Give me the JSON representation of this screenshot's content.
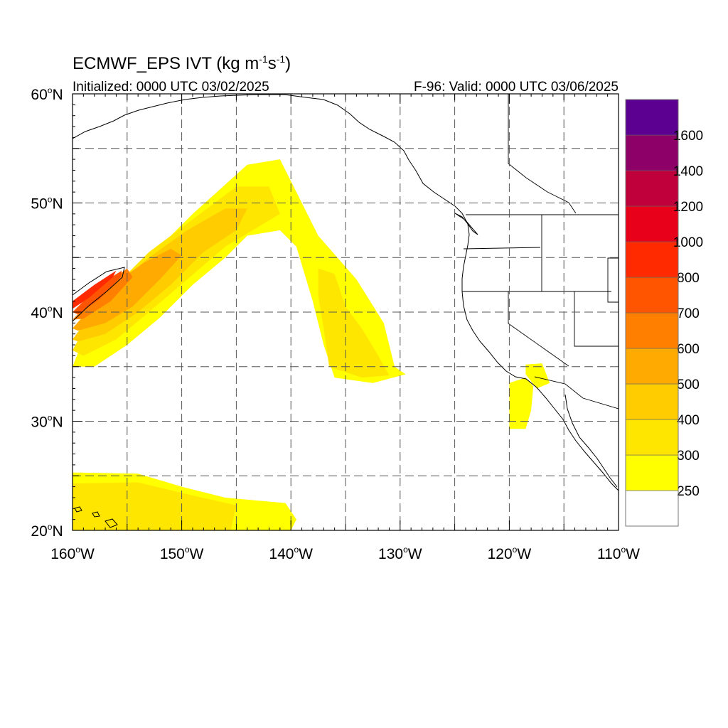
{
  "title": {
    "main": "ECMWF_EPS IVT (kg m",
    "sup1": "-1",
    "mid": "s",
    "sup2": "-1",
    "end": ")"
  },
  "subtitle_left": "Initialized: 0000 UTC 03/02/2025",
  "subtitle_right": "F-96: Valid: 0000 UTC 03/06/2025",
  "map": {
    "lon_range": [
      -160,
      -110
    ],
    "lat_range": [
      20,
      60
    ],
    "grid_lons": [
      -155,
      -150,
      -145,
      -140,
      -135,
      -130,
      -125,
      -120,
      -115
    ],
    "grid_lats": [
      25,
      30,
      35,
      40,
      45,
      50,
      55
    ],
    "lon_ticks": [
      {
        "value": -160,
        "label": "160",
        "suffix": "W"
      },
      {
        "value": -150,
        "label": "150",
        "suffix": "W"
      },
      {
        "value": -140,
        "label": "140",
        "suffix": "W"
      },
      {
        "value": -130,
        "label": "130",
        "suffix": "W"
      },
      {
        "value": -120,
        "label": "120",
        "suffix": "W"
      },
      {
        "value": -110,
        "label": "110",
        "suffix": "W"
      }
    ],
    "lat_ticks": [
      {
        "value": 60,
        "label": "60",
        "suffix": "N"
      },
      {
        "value": 50,
        "label": "50",
        "suffix": "N"
      },
      {
        "value": 40,
        "label": "40",
        "suffix": "N"
      },
      {
        "value": 30,
        "label": "30",
        "suffix": "N"
      },
      {
        "value": 20,
        "label": "20",
        "suffix": "N"
      }
    ],
    "degree_symbol": "o"
  },
  "colorbar": {
    "levels": [
      {
        "label": "250",
        "color": "#ffff00"
      },
      {
        "label": "300",
        "color": "#ffe600"
      },
      {
        "label": "400",
        "color": "#ffcc00"
      },
      {
        "label": "500",
        "color": "#ffaa00"
      },
      {
        "label": "600",
        "color": "#ff8000"
      },
      {
        "label": "700",
        "color": "#ff5500"
      },
      {
        "label": "800",
        "color": "#ff2a00"
      },
      {
        "label": "1000",
        "color": "#e8001a"
      },
      {
        "label": "1200",
        "color": "#c0003a"
      },
      {
        "label": "1400",
        "color": "#8c0068"
      },
      {
        "label": "1600",
        "color": "#5b0090"
      }
    ]
  },
  "ivt_regions": [
    {
      "name": "ar-main-250",
      "level": 0,
      "lonlat": [
        [
          -160,
          35
        ],
        [
          -158,
          40
        ],
        [
          -153,
          45
        ],
        [
          -149,
          49
        ],
        [
          -144,
          53.5
        ],
        [
          -141,
          54
        ],
        [
          -139.5,
          51
        ],
        [
          -137.5,
          47
        ],
        [
          -134,
          43
        ],
        [
          -131.5,
          39
        ],
        [
          -130.5,
          35
        ],
        [
          -129.5,
          34.3
        ],
        [
          -132.5,
          33.5
        ],
        [
          -136,
          34
        ],
        [
          -137,
          37
        ],
        [
          -138,
          41
        ],
        [
          -139.5,
          46
        ],
        [
          -141,
          47.5
        ],
        [
          -144,
          47
        ],
        [
          -146,
          45
        ],
        [
          -149,
          42.5
        ],
        [
          -152,
          39.5
        ],
        [
          -155,
          37
        ],
        [
          -158,
          35
        ]
      ]
    },
    {
      "name": "ar-main-300",
      "level": 1,
      "lonlat": [
        [
          -160,
          36.5
        ],
        [
          -157.5,
          41
        ],
        [
          -153,
          45.5
        ],
        [
          -149,
          48.5
        ],
        [
          -145,
          51.5
        ],
        [
          -142,
          51.5
        ],
        [
          -141,
          49
        ],
        [
          -143.5,
          47.5
        ],
        [
          -146,
          46
        ],
        [
          -149.5,
          43
        ],
        [
          -153,
          40
        ],
        [
          -156,
          37.5
        ],
        [
          -159,
          36
        ]
      ]
    },
    {
      "name": "ar-tail-300",
      "level": 1,
      "lonlat": [
        [
          -137.5,
          44
        ],
        [
          -136,
          43.5
        ],
        [
          -135,
          40.5
        ],
        [
          -133.5,
          38.5
        ],
        [
          -132,
          36
        ],
        [
          -131,
          34.2
        ],
        [
          -133.5,
          34
        ],
        [
          -136.5,
          35
        ],
        [
          -137,
          38.5
        ],
        [
          -137.5,
          41.5
        ]
      ]
    },
    {
      "name": "ar-main-400",
      "level": 2,
      "lonlat": [
        [
          -160,
          37.5
        ],
        [
          -157,
          41.5
        ],
        [
          -153,
          45
        ],
        [
          -149.5,
          47.5
        ],
        [
          -146,
          49.5
        ],
        [
          -144,
          49.5
        ],
        [
          -145,
          47.5
        ],
        [
          -148,
          45.5
        ],
        [
          -151,
          42.5
        ],
        [
          -154,
          40
        ],
        [
          -157,
          38
        ],
        [
          -159.5,
          37.3
        ]
      ]
    },
    {
      "name": "ar-main-500",
      "level": 3,
      "lonlat": [
        [
          -160,
          38.5
        ],
        [
          -157,
          42
        ],
        [
          -153.5,
          44.5
        ],
        [
          -151,
          45.8
        ],
        [
          -150,
          45.2
        ],
        [
          -152,
          43
        ],
        [
          -154.5,
          40.5
        ],
        [
          -157,
          39
        ],
        [
          -159.5,
          38.3
        ]
      ]
    },
    {
      "name": "ar-main-600",
      "level": 4,
      "lonlat": [
        [
          -160,
          39.3
        ],
        [
          -157,
          42.5
        ],
        [
          -155,
          44
        ],
        [
          -154.5,
          43.2
        ],
        [
          -156.5,
          41
        ],
        [
          -159,
          39.4
        ]
      ]
    },
    {
      "name": "ar-main-700",
      "level": 5,
      "lonlat": [
        [
          -160,
          40
        ],
        [
          -157.5,
          42.5
        ],
        [
          -155.5,
          43.8
        ],
        [
          -155.6,
          43.2
        ],
        [
          -157.5,
          41.2
        ],
        [
          -159.5,
          39.8
        ]
      ]
    },
    {
      "name": "ar-main-800",
      "level": 6,
      "lonlat": [
        [
          -160,
          41
        ],
        [
          -158,
          42.5
        ],
        [
          -156,
          43.8
        ],
        [
          -156.3,
          43.2
        ],
        [
          -158.5,
          41.3
        ],
        [
          -160,
          40.3
        ]
      ]
    },
    {
      "name": "hawaii-band-250",
      "level": 0,
      "lonlat": [
        [
          -160,
          25.3
        ],
        [
          -154,
          25.2
        ],
        [
          -150,
          24
        ],
        [
          -146,
          23
        ],
        [
          -140.5,
          22.5
        ],
        [
          -139.5,
          21
        ],
        [
          -140,
          20
        ],
        [
          -160,
          20
        ]
      ]
    },
    {
      "name": "hawaii-band-300",
      "level": 1,
      "lonlat": [
        [
          -160,
          24.3
        ],
        [
          -154,
          24.4
        ],
        [
          -149,
          23.2
        ],
        [
          -145,
          22.3
        ],
        [
          -145.5,
          20
        ],
        [
          -160,
          20
        ]
      ]
    },
    {
      "name": "socal-blob-250",
      "level": 0,
      "lonlat": [
        [
          -120,
          33.5
        ],
        [
          -118.5,
          34
        ],
        [
          -117.8,
          33.2
        ],
        [
          -118,
          31
        ],
        [
          -118.5,
          29.3
        ],
        [
          -120,
          29.3
        ]
      ]
    },
    {
      "name": "socal-blob2-250",
      "level": 0,
      "lonlat": [
        [
          -118.5,
          35.2
        ],
        [
          -117,
          35.3
        ],
        [
          -116.3,
          33.5
        ],
        [
          -117.5,
          33
        ],
        [
          -118.5,
          34.3
        ]
      ]
    }
  ]
}
